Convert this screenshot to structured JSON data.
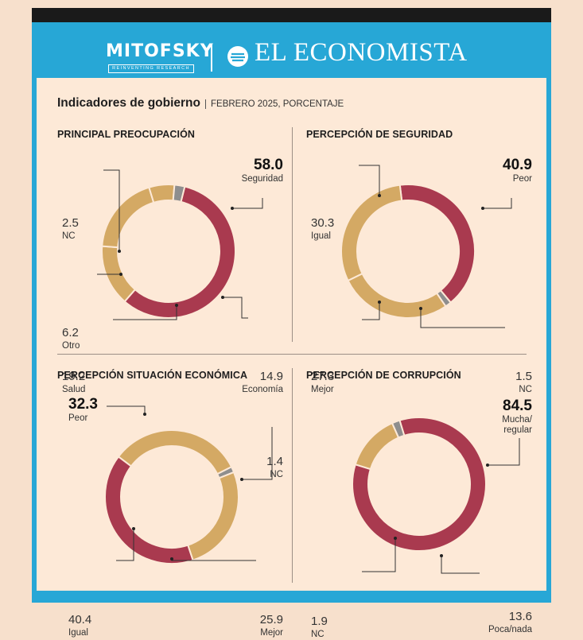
{
  "header": {
    "brand_left": "MITOFSKY",
    "brand_left_sub": "REINVENTING RESEARCH",
    "brand_right": "EL ECONOMISTA"
  },
  "title": "Indicadores de gobierno",
  "subtitle": "FEBRERO 2025, PORCENTAJE",
  "colors": {
    "crimson": "#a93a4f",
    "gold": "#d4a964",
    "gray": "#8e8e8e",
    "frame": "#27a7d6",
    "panel": "#fde9d7"
  },
  "chart_data": [
    {
      "type": "pie",
      "title": "PRINCIPAL PREOCUPACIÓN",
      "slices": [
        {
          "label": "Seguridad",
          "value": 58.0,
          "color": "#a93a4f",
          "display": "58.0"
        },
        {
          "label": "Economía",
          "value": 14.9,
          "color": "#d4a964",
          "display": "14.9"
        },
        {
          "label": "Salud",
          "value": 19.2,
          "color": "#d4a964",
          "display": "19.2"
        },
        {
          "label": "Otro",
          "value": 6.2,
          "color": "#d4a964",
          "display": "6.2"
        },
        {
          "label": "NC",
          "value": 2.5,
          "color": "#8e8e8e",
          "display": "2.5"
        }
      ]
    },
    {
      "type": "pie",
      "title": "PERCEPCIÓN DE SEGURIDAD",
      "slices": [
        {
          "label": "Peor",
          "value": 40.9,
          "color": "#a93a4f",
          "display": "40.9"
        },
        {
          "label": "NC",
          "value": 1.5,
          "color": "#8e8e8e",
          "display": "1.5"
        },
        {
          "label": "Mejor",
          "value": 27.3,
          "color": "#d4a964",
          "display": "27.3"
        },
        {
          "label": "Igual",
          "value": 30.3,
          "color": "#d4a964",
          "display": "30.3"
        }
      ]
    },
    {
      "type": "pie",
      "title": "PERCEPCIÓN SITUACIÓN ECONÓMICA",
      "slices": [
        {
          "label": "Peor",
          "value": 32.3,
          "color": "#d4a964",
          "display": "32.3"
        },
        {
          "label": "NC",
          "value": 1.4,
          "color": "#8e8e8e",
          "display": "1.4"
        },
        {
          "label": "Mejor",
          "value": 25.9,
          "color": "#d4a964",
          "display": "25.9"
        },
        {
          "label": "Igual",
          "value": 40.4,
          "color": "#a93a4f",
          "display": "40.4"
        }
      ]
    },
    {
      "type": "pie",
      "title": "PERCEPCIÓN DE CORRUPCIÓN",
      "slices": [
        {
          "label": "Mucha/\nregular",
          "value": 84.5,
          "color": "#a93a4f",
          "display": "84.5"
        },
        {
          "label": "Poca/nada",
          "value": 13.6,
          "color": "#d4a964",
          "display": "13.6"
        },
        {
          "label": "NC",
          "value": 1.9,
          "color": "#8e8e8e",
          "display": "1.9"
        }
      ]
    }
  ]
}
